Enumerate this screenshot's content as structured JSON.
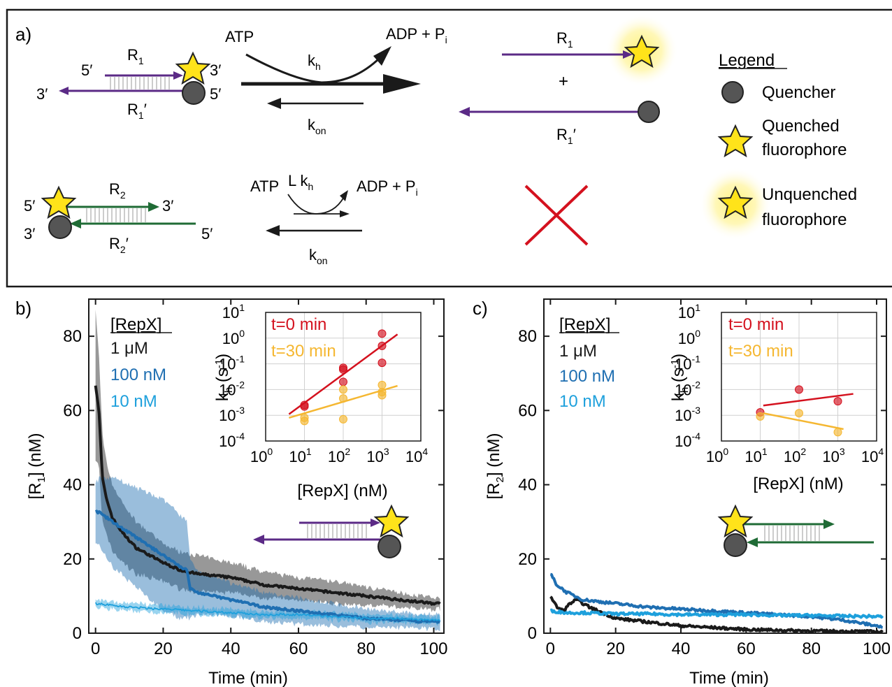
{
  "panel_a": {
    "label": "a)",
    "strand_r1_label": "R",
    "strand_r1_sub": "1",
    "strand_r1p_label": "R",
    "strand_r1p_sub": "1",
    "prime_mark": "′",
    "end_5p": "5′",
    "end_3p": "3′",
    "strand_r2_label": "R",
    "strand_r2_sub": "2",
    "atp": "ATP",
    "adp": "ADP + P",
    "adp_sub": "i",
    "k": "k",
    "kh_sub": "h",
    "kon_sub": "on",
    "l_kh": "L k",
    "plus": "+",
    "legend_title": "Legend",
    "legend_quencher": "Quencher",
    "legend_quenched_1": "Quenched",
    "legend_quenched_2": "fluorophore",
    "legend_unquenched_1": "Unquenched",
    "legend_unquenched_2": "fluorophore"
  },
  "colors": {
    "purple": "#5b2a86",
    "green": "#1f6b35",
    "red": "#d4111e",
    "black": "#1a1a1a",
    "blue_mid": "#1f6fb2",
    "blue_light": "#1ea0dc",
    "orange": "#f5b731",
    "star": "#ffe31a",
    "quencher": "#555555"
  },
  "chart_data": [
    {
      "panel": "b)",
      "type": "line",
      "xlabel": "Time (min)",
      "ylabel_main": "[R",
      "ylabel_sub": "1",
      "ylabel_tail": "] (nM)",
      "xlim": [
        -2,
        103
      ],
      "ylim": [
        0,
        90
      ],
      "xticks": [
        0,
        20,
        40,
        60,
        80,
        100
      ],
      "yticks": [
        0,
        20,
        40,
        60,
        80
      ],
      "legend_title": "[RepX]",
      "series": [
        {
          "name": "1 μM",
          "color": "#1a1a1a",
          "x": [
            0,
            1,
            2,
            3,
            5,
            8,
            12,
            16,
            20,
            25,
            30,
            35,
            40,
            50,
            60,
            70,
            80,
            90,
            100,
            102
          ],
          "y": [
            67,
            60,
            42,
            37,
            31,
            27,
            23,
            21,
            19,
            17,
            16,
            15.5,
            15,
            13,
            12,
            11,
            10,
            9,
            8,
            8
          ],
          "band": [
            20,
            15,
            12,
            10,
            9,
            8,
            7,
            6,
            5,
            5,
            5,
            4.5,
            4,
            3.5,
            3,
            3,
            2.5,
            2,
            1.5,
            1.5
          ]
        },
        {
          "name": "100 nM",
          "color": "#1f6fb2",
          "x": [
            0,
            2,
            5,
            10,
            15,
            20,
            25,
            27,
            28,
            30,
            35,
            40,
            50,
            60,
            70,
            80,
            90,
            100,
            102
          ],
          "y": [
            33,
            32,
            30,
            27,
            24,
            21,
            18,
            17,
            12,
            11,
            10,
            9,
            7,
            6,
            5,
            4,
            3.5,
            3,
            3
          ],
          "band": [
            8,
            10,
            12,
            13,
            14,
            15,
            14,
            13,
            8,
            6,
            5,
            4.5,
            4,
            3.5,
            3,
            2.5,
            2,
            2,
            2
          ]
        },
        {
          "name": "10 nM",
          "color": "#1ea0dc",
          "x": [
            0,
            5,
            10,
            20,
            30,
            40,
            50,
            60,
            70,
            80,
            90,
            100,
            102
          ],
          "y": [
            8,
            7.5,
            7,
            6.5,
            6,
            5.5,
            5,
            5,
            4.5,
            4,
            4,
            3.5,
            3.5
          ],
          "band": [
            1,
            1,
            1,
            1,
            1,
            1,
            1,
            1,
            1,
            1,
            1,
            1,
            1
          ]
        }
      ],
      "inset": {
        "type": "scatter",
        "xlabel": "[RepX] (nM)",
        "ylabel_main": "k",
        "ylabel_sub": "h",
        "ylabel_tail": " (s",
        "ylabel_sup": "-1",
        "ylabel_end": ")",
        "xscale": "log",
        "yscale": "log",
        "xlim_exp": [
          0,
          4
        ],
        "ylim_exp": [
          -4,
          1
        ],
        "grid": true,
        "series": [
          {
            "name": "t=0 min",
            "color": "#d4111e",
            "points": [
              [
                10,
                0.0022
              ],
              [
                10,
                0.0025
              ],
              [
                100,
                0.07
              ],
              [
                100,
                0.06
              ],
              [
                100,
                0.02
              ],
              [
                1000,
                1.5
              ],
              [
                1000,
                0.5
              ],
              [
                1000,
                0.11
              ]
            ],
            "fit": [
              [
                4,
                0.0011
              ],
              [
                2500,
                1.4
              ]
            ]
          },
          {
            "name": "t=30 min",
            "color": "#f5b731",
            "points": [
              [
                10,
                0.0006
              ],
              [
                10,
                0.0008
              ],
              [
                100,
                0.01
              ],
              [
                100,
                0.0045
              ],
              [
                100,
                0.0007
              ],
              [
                1000,
                0.015
              ],
              [
                1000,
                0.008
              ],
              [
                1000,
                0.006
              ]
            ],
            "fit": [
              [
                4,
                0.0008
              ],
              [
                2500,
                0.014
              ]
            ]
          }
        ]
      }
    },
    {
      "panel": "c)",
      "type": "line",
      "xlabel": "Time (min)",
      "ylabel_main": "[R",
      "ylabel_sub": "2",
      "ylabel_tail": "] (nM)",
      "xlim": [
        -2,
        103
      ],
      "ylim": [
        0,
        90
      ],
      "xticks": [
        0,
        20,
        40,
        60,
        80,
        100
      ],
      "yticks": [
        0,
        20,
        40,
        60,
        80
      ],
      "legend_title": "[RepX]",
      "series": [
        {
          "name": "1 μM",
          "color": "#1a1a1a",
          "x": [
            0,
            2,
            4,
            6,
            8,
            12,
            20,
            30,
            40,
            50,
            60,
            70,
            80,
            90,
            100,
            102
          ],
          "y": [
            10,
            7,
            6,
            8,
            9,
            7,
            4,
            3,
            2,
            1.5,
            1,
            0.8,
            0.6,
            0.5,
            0.4,
            0.4
          ]
        },
        {
          "name": "100 nM",
          "color": "#1f6fb2",
          "x": [
            0,
            2,
            5,
            10,
            20,
            30,
            40,
            50,
            60,
            70,
            80,
            90,
            100,
            102
          ],
          "y": [
            16,
            13,
            11,
            9,
            8,
            7,
            6.5,
            6,
            5.5,
            5,
            4.5,
            3.5,
            2,
            1.5
          ]
        },
        {
          "name": "10 nM",
          "color": "#1ea0dc",
          "x": [
            0,
            5,
            10,
            20,
            30,
            40,
            50,
            60,
            70,
            80,
            90,
            100,
            102
          ],
          "y": [
            6,
            5.5,
            5.5,
            5.2,
            5.2,
            5,
            5,
            5,
            4.8,
            4.8,
            4.6,
            4.5,
            4.5
          ]
        }
      ],
      "inset": {
        "type": "scatter",
        "xlabel": "[RepX] (nM)",
        "ylabel_main": "k",
        "ylabel_sub": "h",
        "ylabel_tail": " (s",
        "ylabel_sup": "-1",
        "ylabel_end": ")",
        "xscale": "log",
        "yscale": "log",
        "xlim_exp": [
          0,
          4
        ],
        "ylim_exp": [
          -4,
          1
        ],
        "grid": true,
        "series": [
          {
            "name": "t=0 min",
            "color": "#d4111e",
            "points": [
              [
                10,
                0.0013
              ],
              [
                100,
                0.01
              ],
              [
                1000,
                0.0035
              ]
            ],
            "fit": [
              [
                12,
                0.0024
              ],
              [
                2500,
                0.0068
              ]
            ]
          },
          {
            "name": "t=30 min",
            "color": "#f5b731",
            "points": [
              [
                10,
                0.0009
              ],
              [
                100,
                0.0012
              ],
              [
                1000,
                0.00022
              ]
            ],
            "fit": [
              [
                12,
                0.0012
              ],
              [
                1400,
                0.00029
              ]
            ]
          }
        ]
      }
    }
  ]
}
